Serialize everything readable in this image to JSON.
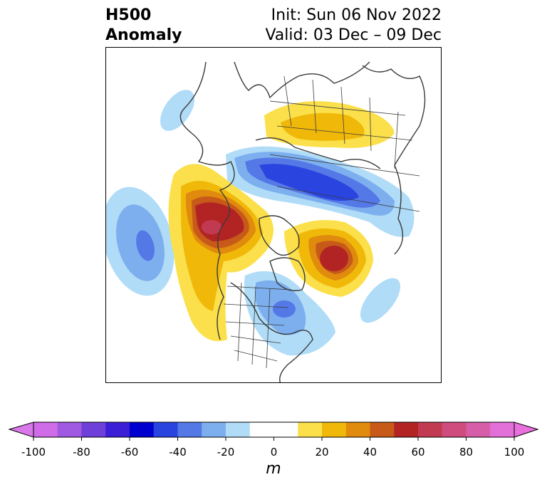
{
  "title": {
    "left_line1": "H500",
    "left_line2": "Anomaly",
    "right_line1": "Init: Sun 06 Nov 2022",
    "right_line2": "Valid: 03 Dec – 09 Dec"
  },
  "colorbar": {
    "units": "m",
    "min": -100,
    "max": 100,
    "tick_values": [
      -100,
      -80,
      -60,
      -40,
      -20,
      0,
      20,
      40,
      60,
      80,
      100
    ],
    "tick_labels": [
      "-100",
      "-80",
      "-60",
      "-40",
      "-20",
      "0",
      "20",
      "40",
      "60",
      "80",
      "100"
    ],
    "bins": [
      {
        "from": -100,
        "to": -90,
        "color": "#cf6ce8"
      },
      {
        "from": -90,
        "to": -80,
        "color": "#a05ae1"
      },
      {
        "from": -80,
        "to": -70,
        "color": "#6e3fd9"
      },
      {
        "from": -70,
        "to": -60,
        "color": "#3a1fd7"
      },
      {
        "from": -60,
        "to": -50,
        "color": "#0000cf"
      },
      {
        "from": -50,
        "to": -40,
        "color": "#2a44e0"
      },
      {
        "from": -40,
        "to": -30,
        "color": "#5478e6"
      },
      {
        "from": -30,
        "to": -20,
        "color": "#7dafef"
      },
      {
        "from": -20,
        "to": -10,
        "color": "#b0dcf8"
      },
      {
        "from": -10,
        "to": 10,
        "color": "#ffffff"
      },
      {
        "from": 10,
        "to": 20,
        "color": "#fbe04b"
      },
      {
        "from": 20,
        "to": 30,
        "color": "#f0b90a"
      },
      {
        "from": 30,
        "to": 40,
        "color": "#e08a0e"
      },
      {
        "from": 40,
        "to": 50,
        "color": "#c75a18"
      },
      {
        "from": 50,
        "to": 60,
        "color": "#b22424"
      },
      {
        "from": 60,
        "to": 70,
        "color": "#c23a52"
      },
      {
        "from": 70,
        "to": 80,
        "color": "#cf4c7e"
      },
      {
        "from": 80,
        "to": 90,
        "color": "#d65ea8"
      },
      {
        "from": 90,
        "to": 100,
        "color": "#e370d8"
      }
    ],
    "under_color": "#d978e8",
    "over_color": "#e86fdc"
  },
  "map": {
    "projection": "north-polar-stereographic",
    "variable": "500 hPa geopotential height anomaly",
    "features": [
      {
        "name": "positive-anomaly-alaska-canada",
        "peak": 60
      },
      {
        "name": "positive-anomaly-greenland-europe",
        "peak": 50
      },
      {
        "name": "positive-anomaly-siberia",
        "peak": 30
      },
      {
        "name": "negative-anomaly-eurasia",
        "peak": -60
      },
      {
        "name": "negative-anomaly-north-pacific",
        "peak": -40
      },
      {
        "name": "negative-anomaly-eastern-us-hudson",
        "peak": -40
      },
      {
        "name": "negative-anomaly-north-atlantic",
        "peak": -20
      },
      {
        "name": "negative-anomaly-kamchatka",
        "peak": -20
      }
    ]
  }
}
